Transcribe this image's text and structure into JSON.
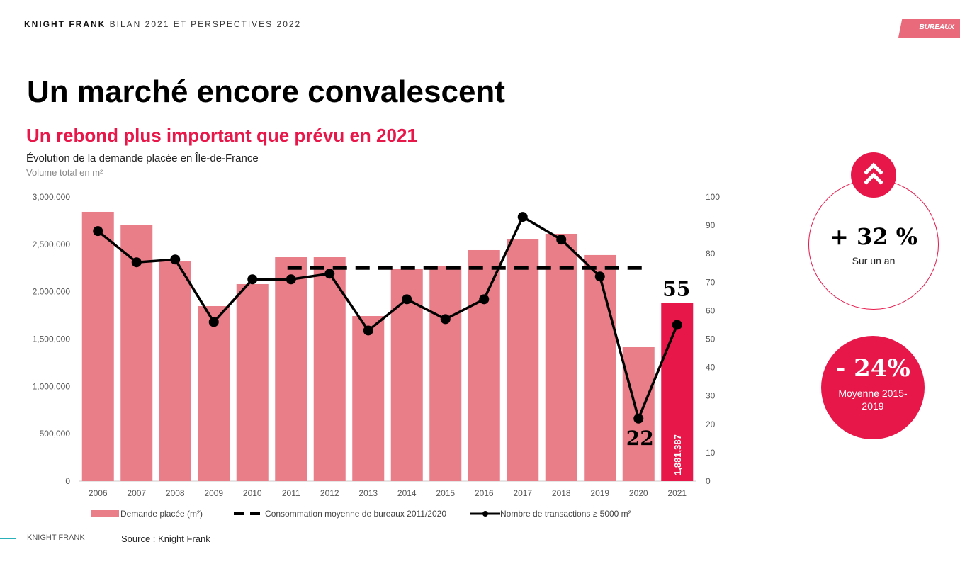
{
  "header": {
    "brand": "KNIGHT FRANK",
    "rest": " BILAN 2021 ET PERSPECTIVES 2022"
  },
  "tag": "BUREAUX",
  "title": "Un marché encore convalescent",
  "subtitle": "Un rebond plus important que prévu en 2021",
  "description": "Évolution de la demande placée en Île-de-France",
  "unit": "Volume total en m²",
  "kpis": [
    {
      "value": "+ 32 %",
      "label": "Sur un an",
      "icon": "double-chevron-up-icon"
    },
    {
      "value": "- 24%",
      "label": "Moyenne 2015-2019"
    }
  ],
  "footer": {
    "brand": "KNIGHT FRANK",
    "source": "Source : Knight Frank"
  },
  "colors": {
    "accent": "#e8174a",
    "bar": "#e97d88",
    "line": "#000000"
  },
  "chart_data": {
    "type": "bar",
    "categories": [
      "2006",
      "2007",
      "2008",
      "2009",
      "2010",
      "2011",
      "2012",
      "2013",
      "2014",
      "2015",
      "2016",
      "2017",
      "2018",
      "2019",
      "2020",
      "2021"
    ],
    "series": [
      {
        "name": "Demande placée (m²)",
        "type": "bar",
        "axis": "left",
        "values": [
          2843000,
          2708000,
          2319000,
          1848000,
          2080000,
          2364000,
          2364000,
          1743000,
          2237000,
          2267000,
          2439000,
          2551000,
          2611000,
          2387000,
          1414000,
          1881387
        ]
      },
      {
        "name": "Consommation moyenne de bureaux 2011/2020",
        "type": "dashed-line",
        "axis": "right",
        "value": 75,
        "from": "2011",
        "to": "2020"
      },
      {
        "name": "Nombre de transactions ≥ 5000 m²",
        "type": "line",
        "axis": "right",
        "values": [
          88,
          77,
          78,
          56,
          71,
          71,
          73,
          53,
          64,
          57,
          64,
          93,
          85,
          72,
          22,
          55
        ]
      }
    ],
    "ylim_left": [
      0,
      3000000
    ],
    "ylim_right": [
      0,
      100
    ],
    "yticks_left": [
      "0",
      "500,000",
      "1,000,000",
      "1,500,000",
      "2,000,000",
      "2,500,000",
      "3,000,000"
    ],
    "yticks_right": [
      "0",
      "10",
      "20",
      "30",
      "40",
      "50",
      "60",
      "70",
      "80",
      "90",
      "100"
    ],
    "annotations": {
      "bar_2021_label": "1,881,387",
      "point_2020_label": "22",
      "point_2021_label": "55"
    },
    "legend": [
      "Demande placée (m²)",
      "Consommation moyenne de bureaux 2011/2020",
      "Nombre de transactions ≥ 5000 m²"
    ],
    "legend_position": "bottom"
  }
}
